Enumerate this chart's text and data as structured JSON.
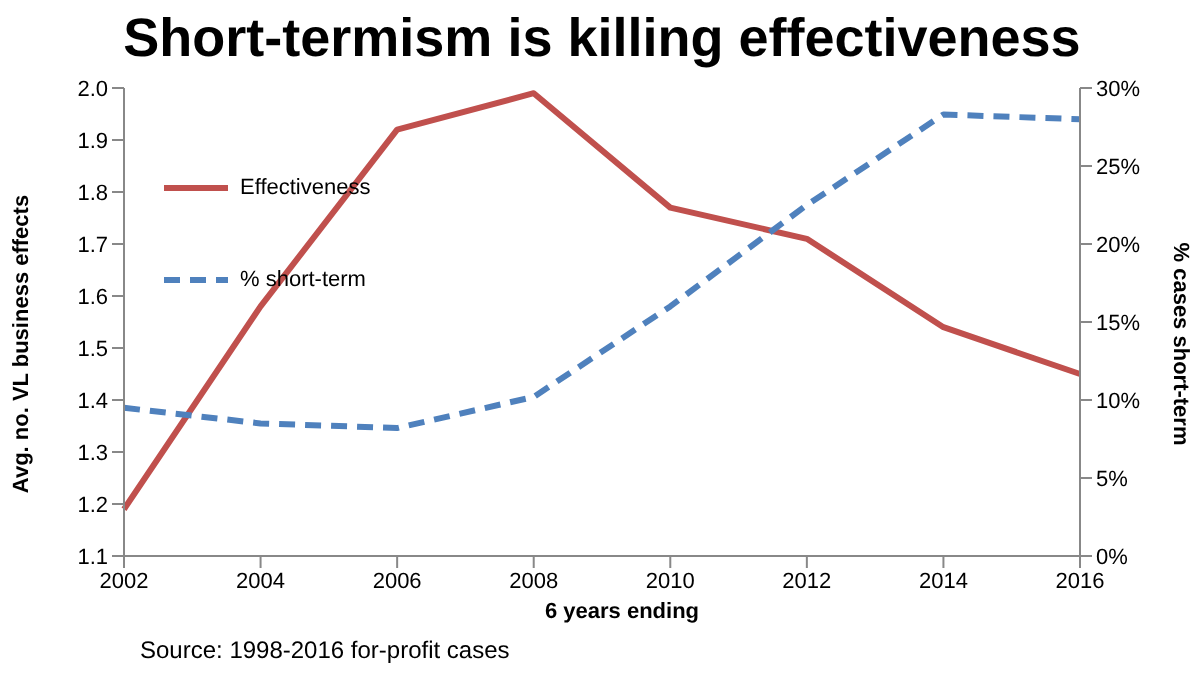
{
  "chart_data": {
    "type": "line",
    "title": "Short-termism is killing effectiveness",
    "xlabel": "6 years ending",
    "ylabel": "Avg. no. VL business effects",
    "y2label": "% cases short-term",
    "categories": [
      "2002",
      "2004",
      "2006",
      "2008",
      "2010",
      "2012",
      "2014",
      "2016"
    ],
    "series": [
      {
        "name": "Effectiveness",
        "color": "#c0504d",
        "line_style": "solid",
        "values": [
          1.19,
          1.58,
          1.92,
          1.99,
          1.77,
          1.71,
          1.54,
          1.45
        ]
      },
      {
        "name": "% short-term",
        "color": "#4f81bd",
        "line_style": "dashed",
        "axis": "y2",
        "values": [
          9.5,
          8.5,
          8.2,
          10.2,
          16,
          22.5,
          28.3,
          28
        ]
      }
    ],
    "ylim": [
      1.1,
      2.0
    ],
    "yticks": [
      {
        "value": 1.1,
        "label": "1.1"
      },
      {
        "value": 1.2,
        "label": "1.2"
      },
      {
        "value": 1.3,
        "label": "1.3"
      },
      {
        "value": 1.4,
        "label": "1.4"
      },
      {
        "value": 1.5,
        "label": "1.5"
      },
      {
        "value": 1.6,
        "label": "1.6"
      },
      {
        "value": 1.7,
        "label": "1.7"
      },
      {
        "value": 1.8,
        "label": "1.8"
      },
      {
        "value": 1.9,
        "label": "1.9"
      },
      {
        "value": 2.0,
        "label": "2.0"
      }
    ],
    "y2lim": [
      0,
      30
    ],
    "y2ticks": [
      {
        "value": 0,
        "label": "0%"
      },
      {
        "value": 5,
        "label": "5%"
      },
      {
        "value": 10,
        "label": "10%"
      },
      {
        "value": 15,
        "label": "15%"
      },
      {
        "value": 20,
        "label": "20%"
      },
      {
        "value": 25,
        "label": "25%"
      },
      {
        "value": 30,
        "label": "30%"
      }
    ],
    "grid": false,
    "legend": "top left",
    "marker": "none",
    "annotations": [
      "Source: 1998-2016 for-profit cases"
    ]
  }
}
